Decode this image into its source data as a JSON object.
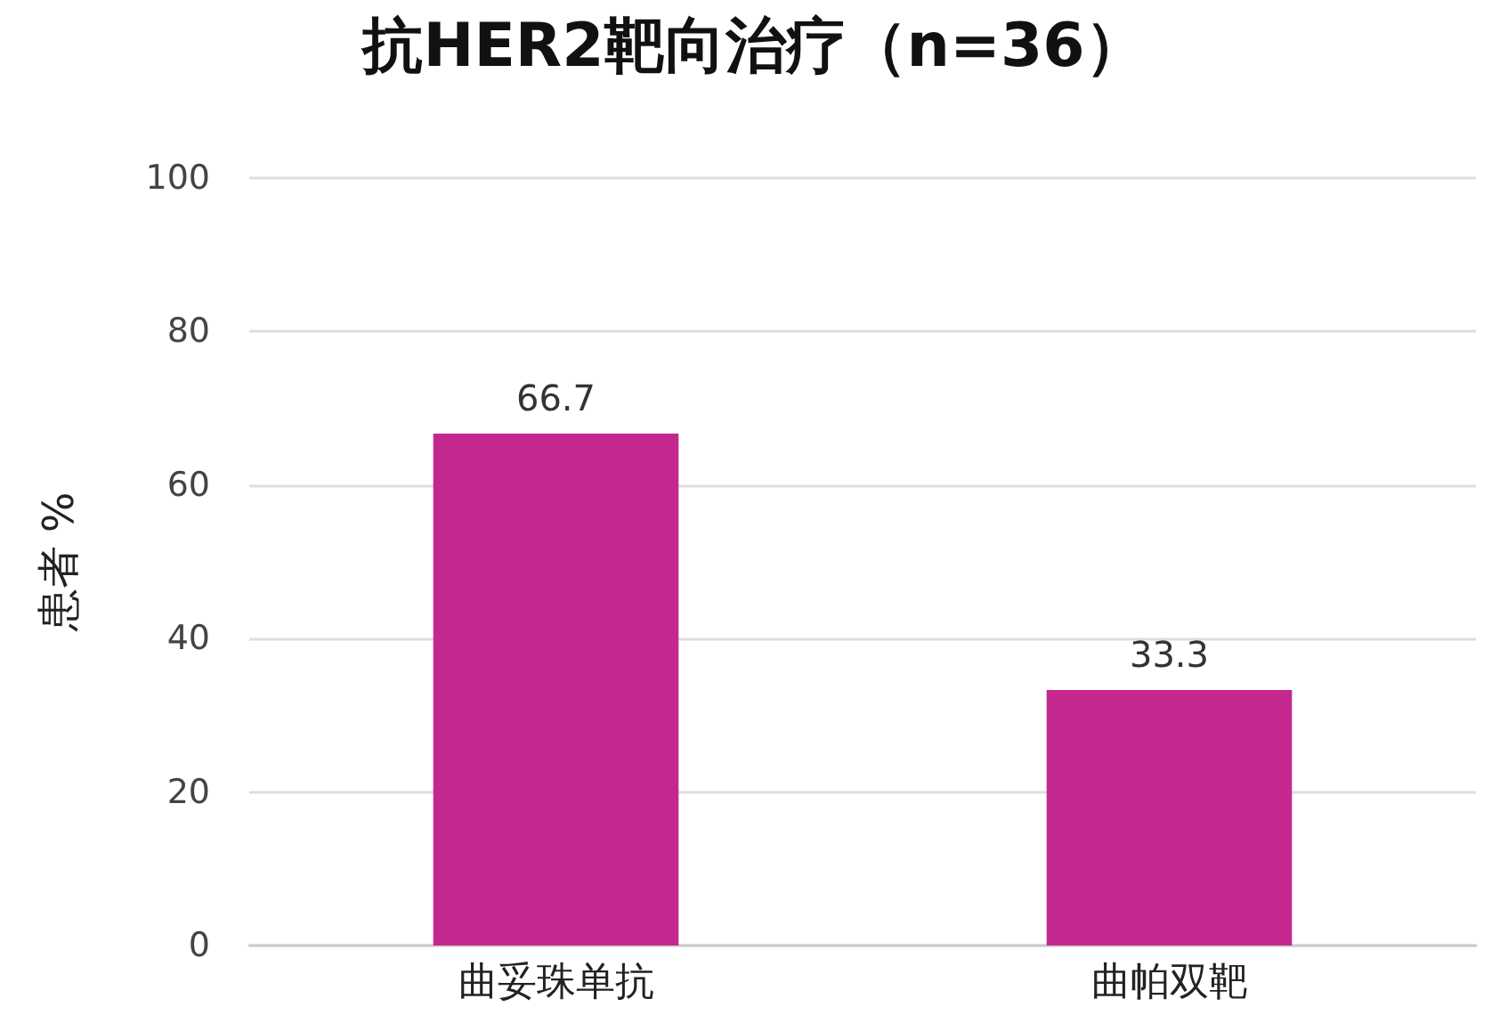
{
  "chart_data": {
    "type": "bar",
    "title": "抗HER2靶向治疗（n=36）",
    "ylabel": "患者 %",
    "categories": [
      "曲妥珠单抗",
      "曲帕双靶"
    ],
    "values": [
      66.7,
      33.3
    ],
    "color": "#c4288f",
    "ylim": [
      0,
      100
    ],
    "yticks": [
      0,
      20,
      40,
      60,
      80,
      100
    ],
    "grid": "y",
    "data_labels": true
  }
}
